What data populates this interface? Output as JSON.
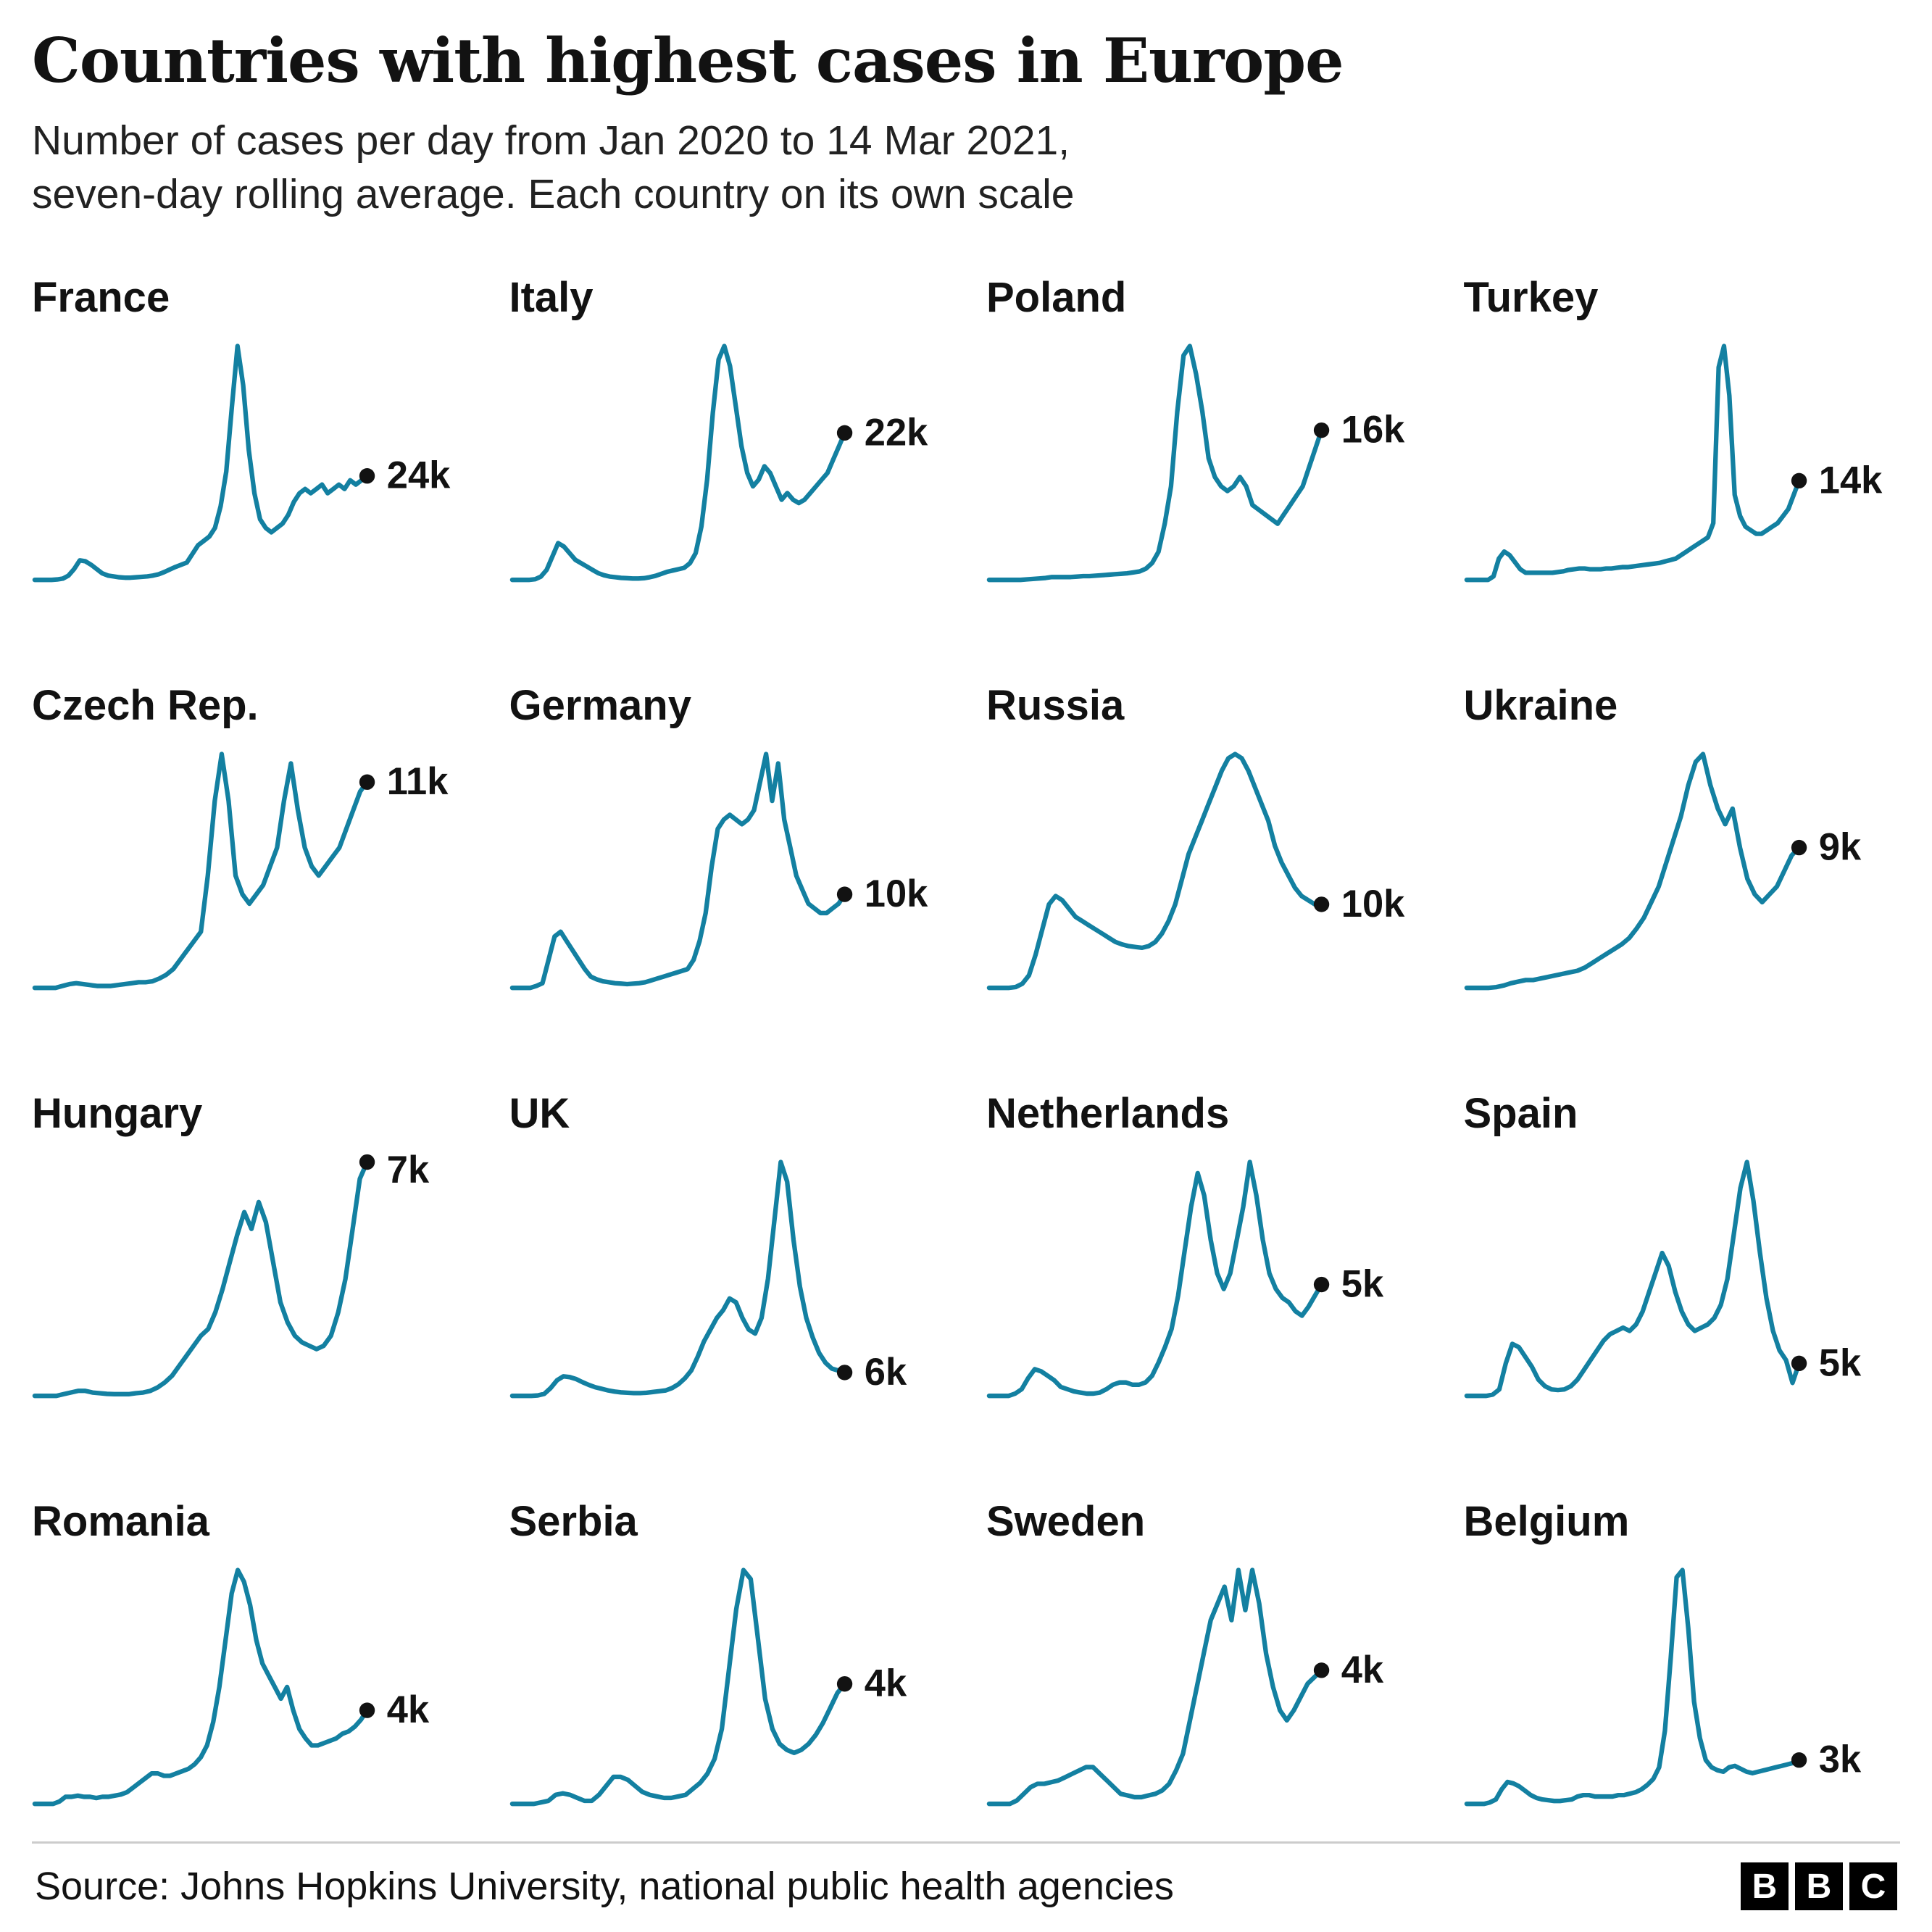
{
  "header": {
    "title": "Countries with highest cases in Europe",
    "subtitle": "Number of cases per day from Jan 2020 to 14 Mar 2021, seven-day rolling average. Each country on its own scale"
  },
  "footer": {
    "source": "Source: Johns Hopkins University, national public health agencies",
    "logo_letters": [
      "B",
      "B",
      "C"
    ]
  },
  "chart_style": {
    "line_color": "#1380A1",
    "dot_color": "#121212",
    "label_color": "#121212"
  },
  "chart_meta": {
    "x_range": "Jan 2020 to 14 Mar 2021",
    "y_unit": "cases per day, thousands",
    "note": "seven-day rolling average, each country on its own scale, no axes drawn, end value labelled with black dot"
  },
  "chart_data": [
    {
      "type": "line",
      "title": "France",
      "end_label": "24k",
      "end_value_thousands": 24,
      "values": [
        0,
        0,
        0,
        0,
        0.1,
        0.3,
        1,
        2.5,
        4.5,
        4.3,
        3.5,
        2.5,
        1.5,
        1,
        0.8,
        0.6,
        0.5,
        0.5,
        0.6,
        0.7,
        0.8,
        1,
        1.3,
        1.8,
        2.4,
        3,
        3.5,
        4,
        6,
        8,
        9,
        10,
        12,
        17,
        25,
        40,
        54,
        45,
        30,
        20,
        14,
        12,
        11,
        12,
        13,
        15,
        18,
        20,
        21,
        20,
        21,
        22,
        20,
        21,
        22,
        21,
        23,
        22,
        23,
        24
      ]
    },
    {
      "type": "line",
      "title": "Italy",
      "end_label": "22k",
      "end_value_thousands": 22,
      "values": [
        0,
        0,
        0,
        0,
        0.1,
        0.5,
        1.5,
        3.5,
        5.5,
        5,
        4,
        3,
        2.5,
        2,
        1.5,
        1,
        0.7,
        0.5,
        0.4,
        0.3,
        0.25,
        0.2,
        0.2,
        0.25,
        0.4,
        0.6,
        0.9,
        1.2,
        1.4,
        1.6,
        1.8,
        2.5,
        4,
        8,
        15,
        25,
        33,
        35,
        32,
        26,
        20,
        16,
        14,
        15,
        17,
        16,
        14,
        12,
        13,
        12,
        11.5,
        12,
        13,
        14,
        15,
        16,
        18,
        20,
        22
      ]
    },
    {
      "type": "line",
      "title": "Poland",
      "end_label": "16k",
      "end_value_thousands": 16,
      "values": [
        0,
        0,
        0,
        0,
        0,
        0,
        0.05,
        0.1,
        0.15,
        0.2,
        0.3,
        0.3,
        0.3,
        0.3,
        0.35,
        0.4,
        0.4,
        0.45,
        0.5,
        0.55,
        0.6,
        0.65,
        0.7,
        0.8,
        0.9,
        1.2,
        1.8,
        3,
        6,
        10,
        18,
        24,
        25,
        22,
        18,
        13,
        11,
        10,
        9.5,
        10,
        11,
        10,
        8,
        7.5,
        7,
        6.5,
        6,
        7,
        8,
        9,
        10,
        12,
        14,
        16
      ]
    },
    {
      "type": "line",
      "title": "Turkey",
      "end_label": "14k",
      "end_value_thousands": 14,
      "values": [
        0,
        0,
        0,
        0,
        0,
        0.5,
        3,
        4,
        3.5,
        2.5,
        1.5,
        1,
        1,
        1,
        1,
        1,
        1,
        1.1,
        1.2,
        1.4,
        1.5,
        1.6,
        1.6,
        1.5,
        1.5,
        1.5,
        1.6,
        1.6,
        1.7,
        1.8,
        1.8,
        1.9,
        2,
        2.1,
        2.2,
        2.3,
        2.4,
        2.6,
        2.8,
        3,
        3.5,
        4,
        4.5,
        5,
        5.5,
        6,
        8,
        30,
        33,
        26,
        12,
        9,
        7.5,
        7,
        6.5,
        6.5,
        7,
        7.5,
        8,
        9,
        10,
        12,
        14
      ]
    },
    {
      "type": "line",
      "title": "Czech Rep.",
      "end_label": "11k",
      "end_value_thousands": 11,
      "values": [
        0,
        0,
        0,
        0,
        0.1,
        0.2,
        0.25,
        0.2,
        0.15,
        0.1,
        0.1,
        0.1,
        0.15,
        0.2,
        0.25,
        0.3,
        0.3,
        0.35,
        0.5,
        0.7,
        1,
        1.5,
        2,
        2.5,
        3,
        6,
        10,
        12.5,
        10,
        6,
        5,
        4.5,
        5,
        5.5,
        6.5,
        7.5,
        10,
        12,
        9.5,
        7.5,
        6.5,
        6,
        6.5,
        7,
        7.5,
        8.5,
        9.5,
        10.5,
        11
      ]
    },
    {
      "type": "line",
      "title": "Germany",
      "end_label": "10k",
      "end_value_thousands": 10,
      "values": [
        0,
        0,
        0,
        0,
        0.2,
        0.5,
        3,
        5.5,
        6,
        5,
        4,
        3,
        2,
        1.2,
        0.9,
        0.7,
        0.6,
        0.5,
        0.45,
        0.4,
        0.45,
        0.5,
        0.6,
        0.8,
        1,
        1.2,
        1.4,
        1.6,
        1.8,
        2,
        3,
        5,
        8,
        13,
        17,
        18,
        18.5,
        18,
        17.5,
        18,
        19,
        22,
        25,
        20,
        24,
        18,
        15,
        12,
        10.5,
        9,
        8.5,
        8,
        8,
        8.5,
        9,
        10
      ]
    },
    {
      "type": "line",
      "title": "Russia",
      "end_label": "10k",
      "end_value_thousands": 10,
      "values": [
        0,
        0,
        0,
        0,
        0.1,
        0.5,
        1.5,
        4,
        7,
        10,
        11,
        10.5,
        9.5,
        8.5,
        8,
        7.5,
        7,
        6.5,
        6,
        5.5,
        5.2,
        5,
        4.9,
        4.8,
        5,
        5.5,
        6.5,
        8,
        10,
        13,
        16,
        18,
        20,
        22,
        24,
        26,
        27.5,
        28,
        27.5,
        26,
        24,
        22,
        20,
        17,
        15,
        13.5,
        12,
        11,
        10.5,
        10,
        10
      ]
    },
    {
      "type": "line",
      "title": "Ukraine",
      "end_label": "9k",
      "end_value_thousands": 9,
      "values": [
        0,
        0,
        0,
        0,
        0.05,
        0.15,
        0.3,
        0.4,
        0.5,
        0.5,
        0.6,
        0.7,
        0.8,
        0.9,
        1,
        1.1,
        1.3,
        1.6,
        1.9,
        2.2,
        2.5,
        2.8,
        3.2,
        3.8,
        4.5,
        5.5,
        6.5,
        8,
        9.5,
        11,
        13,
        14.5,
        15,
        13,
        11.5,
        10.5,
        11.5,
        9,
        7,
        6,
        5.5,
        6,
        6.5,
        7.5,
        8.5,
        9
      ]
    },
    {
      "type": "line",
      "title": "Hungary",
      "end_label": "7k",
      "end_value_thousands": 7,
      "values": [
        0,
        0,
        0,
        0,
        0.05,
        0.1,
        0.15,
        0.15,
        0.1,
        0.08,
        0.06,
        0.05,
        0.05,
        0.05,
        0.08,
        0.1,
        0.15,
        0.25,
        0.4,
        0.6,
        0.9,
        1.2,
        1.5,
        1.8,
        2,
        2.5,
        3.2,
        4,
        4.8,
        5.5,
        5,
        5.8,
        5.2,
        4,
        2.8,
        2.2,
        1.8,
        1.6,
        1.5,
        1.4,
        1.5,
        1.8,
        2.5,
        3.5,
        5,
        6.5,
        7
      ]
    },
    {
      "type": "line",
      "title": "UK",
      "end_label": "6k",
      "end_value_thousands": 6,
      "values": [
        0,
        0,
        0,
        0,
        0.1,
        0.5,
        2,
        4,
        5,
        4.8,
        4.3,
        3.5,
        2.8,
        2.2,
        1.8,
        1.4,
        1.1,
        0.9,
        0.8,
        0.7,
        0.7,
        0.8,
        1,
        1.2,
        1.4,
        2,
        3,
        4.5,
        6.5,
        10,
        14,
        17,
        20,
        22,
        25,
        24,
        20,
        17,
        16,
        20,
        30,
        45,
        60,
        55,
        40,
        28,
        20,
        15,
        11,
        8.5,
        7,
        6.5,
        6
      ]
    },
    {
      "type": "line",
      "title": "Netherlands",
      "end_label": "5k",
      "end_value_thousands": 5,
      "values": [
        0,
        0,
        0,
        0,
        0.1,
        0.3,
        0.8,
        1.2,
        1.1,
        0.9,
        0.7,
        0.4,
        0.3,
        0.2,
        0.15,
        0.1,
        0.1,
        0.15,
        0.3,
        0.5,
        0.6,
        0.6,
        0.5,
        0.5,
        0.6,
        0.9,
        1.5,
        2.2,
        3,
        4.5,
        6.5,
        8.5,
        10,
        9,
        7,
        5.5,
        4.8,
        5.5,
        7,
        8.5,
        10.5,
        9,
        7,
        5.5,
        4.8,
        4.4,
        4.2,
        3.8,
        3.6,
        4,
        4.5,
        5
      ]
    },
    {
      "type": "line",
      "title": "Spain",
      "end_label": "5k",
      "end_value_thousands": 5,
      "values": [
        0,
        0,
        0,
        0,
        0.2,
        1,
        5,
        8,
        7.5,
        6,
        4.5,
        2.5,
        1.5,
        1,
        0.9,
        1,
        1.5,
        2.5,
        4,
        5.5,
        7,
        8.5,
        9.5,
        10,
        10.5,
        10,
        11,
        13,
        16,
        19,
        22,
        20,
        16,
        13,
        11,
        10,
        10.5,
        11,
        12,
        14,
        18,
        25,
        32,
        36,
        30,
        22,
        15,
        10,
        7,
        5.5,
        2,
        5
      ]
    },
    {
      "type": "line",
      "title": "Romania",
      "end_label": "4k",
      "end_value_thousands": 4,
      "values": [
        0,
        0,
        0,
        0,
        0.1,
        0.3,
        0.3,
        0.35,
        0.3,
        0.3,
        0.25,
        0.3,
        0.3,
        0.35,
        0.4,
        0.5,
        0.7,
        0.9,
        1.1,
        1.3,
        1.3,
        1.2,
        1.2,
        1.3,
        1.4,
        1.5,
        1.7,
        2,
        2.5,
        3.5,
        5,
        7,
        9,
        10,
        9.5,
        8.5,
        7,
        6,
        5.5,
        5,
        4.5,
        5,
        4,
        3.2,
        2.8,
        2.5,
        2.5,
        2.6,
        2.7,
        2.8,
        3,
        3.1,
        3.3,
        3.6,
        4
      ]
    },
    {
      "type": "line",
      "title": "Serbia",
      "end_label": "4k",
      "end_value_thousands": 4,
      "values": [
        0,
        0,
        0,
        0,
        0.05,
        0.1,
        0.3,
        0.35,
        0.3,
        0.2,
        0.1,
        0.1,
        0.3,
        0.6,
        0.9,
        0.9,
        0.8,
        0.6,
        0.4,
        0.3,
        0.25,
        0.2,
        0.2,
        0.25,
        0.3,
        0.5,
        0.7,
        1,
        1.5,
        2.5,
        4.5,
        6.5,
        7.8,
        7.5,
        5.5,
        3.5,
        2.5,
        2,
        1.8,
        1.7,
        1.8,
        2,
        2.3,
        2.7,
        3.2,
        3.7,
        4
      ]
    },
    {
      "type": "line",
      "title": "Sweden",
      "end_label": "4k",
      "end_value_thousands": 4,
      "values": [
        0,
        0,
        0,
        0,
        0.1,
        0.3,
        0.5,
        0.6,
        0.6,
        0.65,
        0.7,
        0.8,
        0.9,
        1,
        1.1,
        1.1,
        0.9,
        0.7,
        0.5,
        0.3,
        0.25,
        0.2,
        0.2,
        0.25,
        0.3,
        0.4,
        0.6,
        1,
        1.5,
        2.5,
        3.5,
        4.5,
        5.5,
        6,
        6.5,
        5.5,
        7,
        5.8,
        7,
        6,
        4.5,
        3.5,
        2.8,
        2.5,
        2.8,
        3.2,
        3.6,
        3.8,
        4
      ]
    },
    {
      "type": "line",
      "title": "Belgium",
      "end_label": "3k",
      "end_value_thousands": 3,
      "values": [
        0,
        0,
        0,
        0,
        0.1,
        0.3,
        1,
        1.5,
        1.4,
        1.2,
        0.9,
        0.6,
        0.4,
        0.3,
        0.25,
        0.2,
        0.2,
        0.25,
        0.3,
        0.5,
        0.6,
        0.6,
        0.5,
        0.5,
        0.5,
        0.5,
        0.6,
        0.6,
        0.7,
        0.8,
        1,
        1.3,
        1.7,
        2.5,
        5,
        10,
        15.5,
        16,
        12,
        7,
        4.5,
        3,
        2.5,
        2.3,
        2.2,
        2.5,
        2.6,
        2.4,
        2.2,
        2.1,
        2.2,
        2.3,
        2.4,
        2.5,
        2.6,
        2.7,
        2.8,
        3
      ]
    }
  ]
}
